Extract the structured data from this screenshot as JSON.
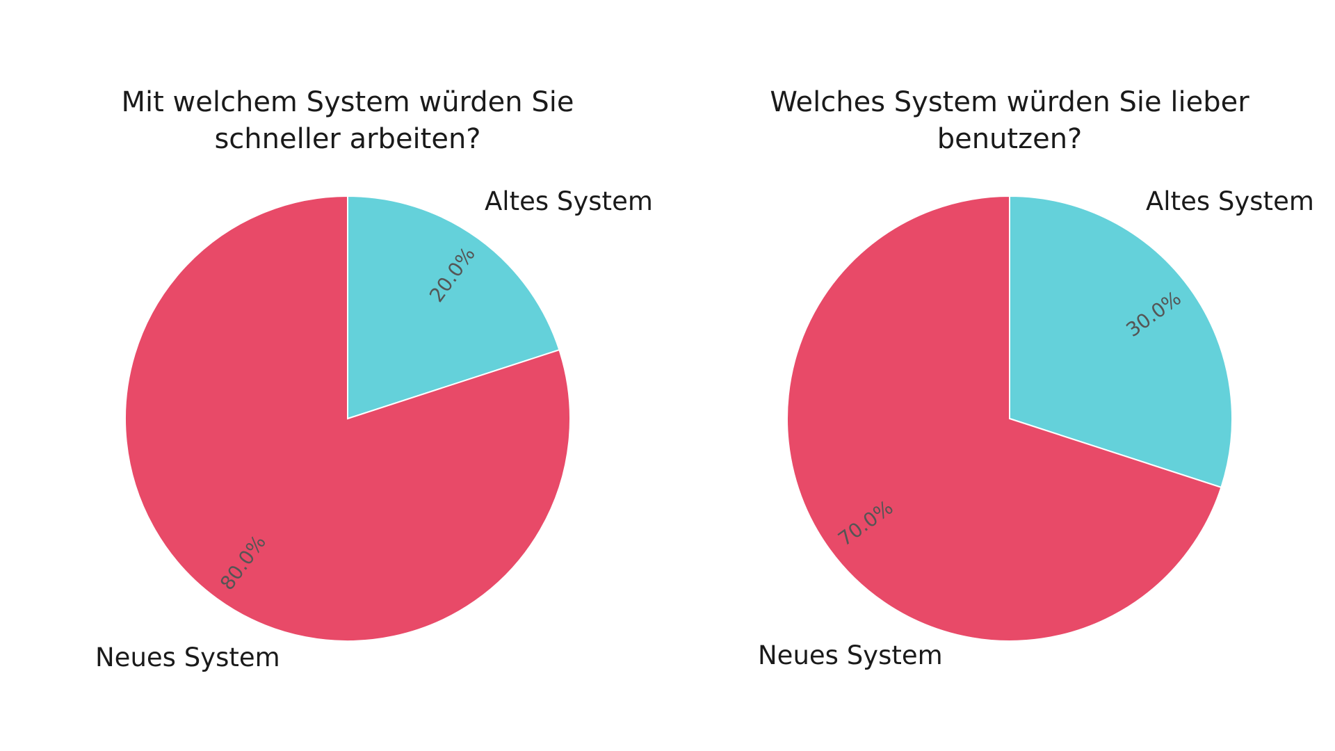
{
  "colors": {
    "altes_system": "#64D1DA",
    "neues_system": "#E84A68",
    "text": "#1a1a1a",
    "pct_text": "#555555",
    "background": "#ffffff"
  },
  "chart_data": [
    {
      "type": "pie",
      "title_lines": [
        "Mit welchem System würden Sie",
        "schneller arbeiten?"
      ],
      "categories": [
        "Altes System",
        "Neues System"
      ],
      "values": [
        20.0,
        80.0
      ],
      "pct_labels": [
        "20.0%",
        "80.0%"
      ],
      "start_angle_deg": 90,
      "direction": "clockwise",
      "legend": "none"
    },
    {
      "type": "pie",
      "title_lines": [
        "Welches System würden Sie lieber",
        "benutzen?"
      ],
      "categories": [
        "Altes System",
        "Neues System"
      ],
      "values": [
        30.0,
        70.0
      ],
      "pct_labels": [
        "30.0%",
        "70.0%"
      ],
      "start_angle_deg": 90,
      "direction": "clockwise",
      "legend": "none"
    }
  ]
}
